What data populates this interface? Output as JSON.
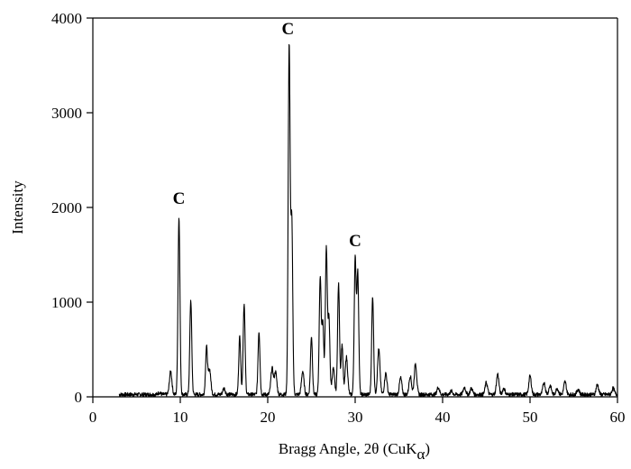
{
  "chart_data": {
    "type": "line",
    "title": "",
    "xlabel": "Bragg Angle, 2θ (CuK",
    "xlabel_subscript": "α",
    "xlabel_suffix": ")",
    "ylabel": "Intensity",
    "xlim": [
      0,
      60
    ],
    "ylim": [
      0,
      4000
    ],
    "x_ticks": [
      0,
      10,
      20,
      30,
      40,
      50,
      60
    ],
    "x_tick_labels": [
      "0",
      "10",
      "20",
      "30",
      "40",
      "50",
      "60"
    ],
    "y_ticks": [
      0,
      1000,
      2000,
      3000,
      4000
    ],
    "y_tick_labels": [
      "0",
      "1000",
      "2000",
      "3000",
      "4000"
    ],
    "grid": false,
    "line_color": "#000000",
    "series": [
      {
        "x_start": 3.0,
        "x_end": 60.0,
        "baseline": 25,
        "peaks": [
          [
            7.6,
            45
          ],
          [
            8.9,
            270
          ],
          [
            9.85,
            1900
          ],
          [
            11.2,
            1020
          ],
          [
            13.0,
            520
          ],
          [
            13.35,
            290
          ],
          [
            15.0,
            90
          ],
          [
            16.8,
            640
          ],
          [
            17.3,
            980
          ],
          [
            19.0,
            690
          ],
          [
            20.5,
            300
          ],
          [
            20.9,
            260
          ],
          [
            22.45,
            3700
          ],
          [
            22.75,
            1850
          ],
          [
            24.0,
            270
          ],
          [
            25.0,
            640
          ],
          [
            26.0,
            1260
          ],
          [
            26.3,
            780
          ],
          [
            26.7,
            1570
          ],
          [
            27.0,
            820
          ],
          [
            27.5,
            300
          ],
          [
            28.1,
            1190
          ],
          [
            28.5,
            550
          ],
          [
            29.0,
            420
          ],
          [
            30.0,
            1450
          ],
          [
            30.3,
            1300
          ],
          [
            32.0,
            1060
          ],
          [
            32.7,
            500
          ],
          [
            33.5,
            250
          ],
          [
            35.2,
            200
          ],
          [
            36.3,
            220
          ],
          [
            36.9,
            350
          ],
          [
            39.5,
            100
          ],
          [
            41.0,
            60
          ],
          [
            42.5,
            100
          ],
          [
            43.3,
            90
          ],
          [
            45.0,
            150
          ],
          [
            46.3,
            240
          ],
          [
            47.0,
            90
          ],
          [
            50.0,
            220
          ],
          [
            51.6,
            150
          ],
          [
            52.3,
            120
          ],
          [
            53.1,
            90
          ],
          [
            54.0,
            160
          ],
          [
            55.5,
            80
          ],
          [
            57.7,
            130
          ],
          [
            59.5,
            90
          ]
        ]
      }
    ],
    "annotations": [
      {
        "text": "C",
        "x": 9.85,
        "y": 2040
      },
      {
        "text": "C",
        "x": 22.3,
        "y": 3830
      },
      {
        "text": "C",
        "x": 30.0,
        "y": 1590
      }
    ]
  }
}
